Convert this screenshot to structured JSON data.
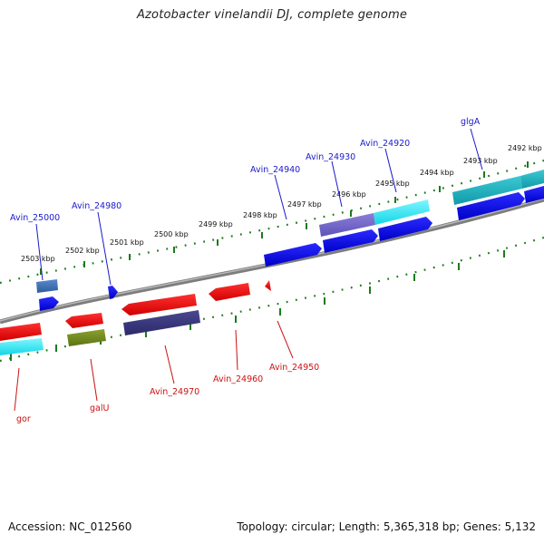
{
  "title": "Azotobacter vinelandii DJ, complete genome",
  "accession": "Accession: NC_012560",
  "summary": "Topology: circular; Length: 5,365,318 bp; Genes: 5,132",
  "colors": {
    "backbone": "#8a8a8a",
    "tick": "#1c7a1c",
    "forward_label": "#1a1acc",
    "reverse_label": "#cc1111"
  },
  "scale_labels": [
    "2503 kbp",
    "2502 kbp",
    "2501 kbp",
    "2500 kbp",
    "2499 kbp",
    "2498 kbp",
    "2497 kbp",
    "2496 kbp",
    "2495 kbp",
    "2494 kbp",
    "2493 kbp",
    "2492 kbp"
  ],
  "forward_gene_labels": [
    "Avin_25000",
    "Avin_24980",
    "Avin_24940",
    "Avin_24930",
    "Avin_24920",
    "glgA"
  ],
  "reverse_gene_labels": [
    "gor",
    "galU",
    "Avin_24970",
    "Avin_24960",
    "Avin_24950"
  ]
}
